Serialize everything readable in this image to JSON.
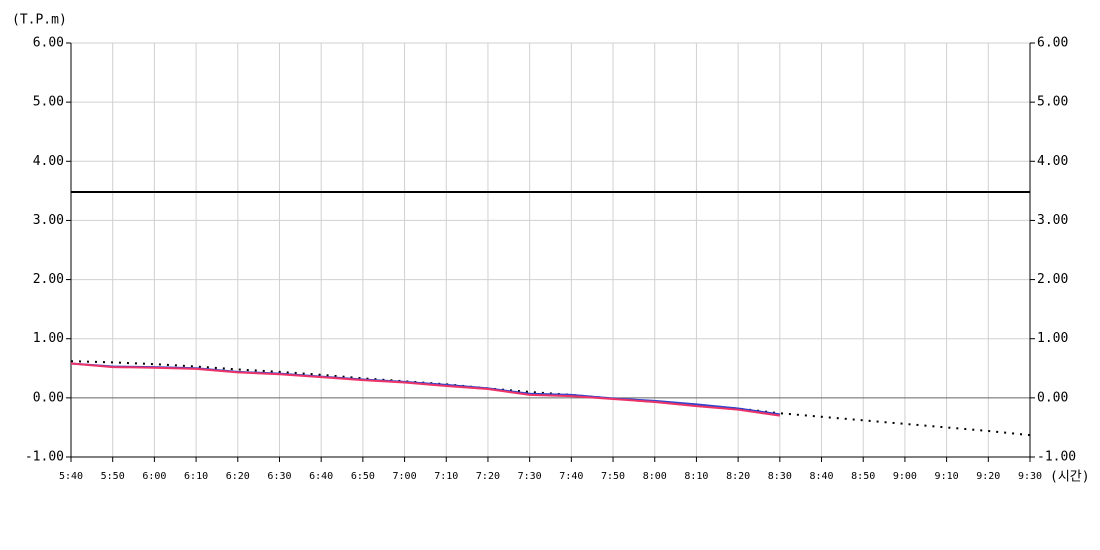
{
  "chart_data": {
    "type": "line",
    "y_label": "(T.P.m)",
    "x_label": "(시간)",
    "categories": [
      "5:40",
      "5:50",
      "6:00",
      "6:10",
      "6:20",
      "6:30",
      "6:40",
      "6:50",
      "7:00",
      "7:10",
      "7:20",
      "7:30",
      "7:40",
      "7:50",
      "8:00",
      "8:10",
      "8:20",
      "8:30",
      "8:40",
      "8:50",
      "9:00",
      "9:10",
      "9:20",
      "9:30"
    ],
    "series": [
      {
        "color": "#000000",
        "dash": "2,6",
        "values": [
          0.62,
          0.6,
          0.57,
          0.53,
          0.48,
          0.44,
          0.39,
          0.33,
          0.28,
          0.23,
          0.16,
          0.1,
          0.05,
          -0.01,
          -0.07,
          -0.12,
          -0.18,
          -0.26,
          -0.32,
          -0.38,
          -0.44,
          -0.5,
          -0.56,
          -0.63
        ]
      },
      {
        "color": "#3344cc",
        "values": [
          0.58,
          0.53,
          0.52,
          0.5,
          0.44,
          0.41,
          0.36,
          0.31,
          0.27,
          0.22,
          0.16,
          0.07,
          0.05,
          -0.01,
          -0.05,
          -0.11,
          -0.18,
          -0.28,
          null,
          null,
          null,
          null,
          null,
          null
        ]
      },
      {
        "color": "#ee3366",
        "values": [
          0.58,
          0.52,
          0.51,
          0.49,
          0.43,
          0.4,
          0.35,
          0.3,
          0.26,
          0.2,
          0.15,
          0.05,
          0.03,
          -0.02,
          -0.07,
          -0.14,
          -0.2,
          -0.3,
          null,
          null,
          null,
          null,
          null,
          null
        ]
      }
    ],
    "reference_line": {
      "value": 3.48,
      "color": "#000000"
    },
    "ylim": [
      -1,
      6
    ],
    "yticks": [
      {
        "value": -1,
        "label": "-1.00"
      },
      {
        "value": 0,
        "label": "0.00"
      },
      {
        "value": 1,
        "label": "1.00"
      },
      {
        "value": 2,
        "label": "2.00"
      },
      {
        "value": 3,
        "label": "3.00"
      },
      {
        "value": 4,
        "label": "4.00"
      },
      {
        "value": 5,
        "label": "5.00"
      },
      {
        "value": 6,
        "label": "6.00"
      }
    ],
    "y2lim": [
      -1,
      6
    ],
    "y2ticks": [
      {
        "value": -1,
        "label": "-1.00"
      },
      {
        "value": 0,
        "label": "0.00"
      },
      {
        "value": 1,
        "label": "1.00"
      },
      {
        "value": 2,
        "label": "2.00"
      },
      {
        "value": 3,
        "label": "3.00"
      },
      {
        "value": 4,
        "label": "4.00"
      },
      {
        "value": 5,
        "label": "5.00"
      },
      {
        "value": 6,
        "label": "6.00"
      }
    ],
    "grid": true
  }
}
